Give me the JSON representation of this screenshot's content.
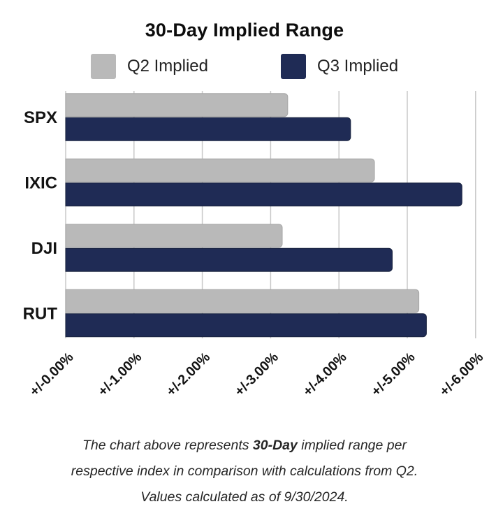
{
  "title": "30-Day Implied Range",
  "legend": {
    "items": [
      {
        "label": "Q2 Implied",
        "color": "#b9b9b9"
      },
      {
        "label": "Q3 Implied",
        "color": "#1f2b55"
      }
    ]
  },
  "chart_data": {
    "type": "bar",
    "orientation": "horizontal",
    "title": "30-Day Implied Range",
    "categories": [
      "SPX",
      "IXIC",
      "DJI",
      "RUT"
    ],
    "series": [
      {
        "name": "Q2 Implied",
        "color": "#b9b9b9",
        "edge_color": "#a6a6a6",
        "values_pct": [
          3.25,
          4.52,
          3.17,
          5.17
        ]
      },
      {
        "name": "Q3 Implied",
        "color": "#1f2b55",
        "edge_color": "#19233f",
        "values_pct": [
          4.17,
          5.8,
          4.78,
          5.28
        ]
      }
    ],
    "x_axis": {
      "tick_labels": [
        "+/-0.00%",
        "+/-1.00%",
        "+/-2.00%",
        "+/-3.00%",
        "+/-4.00%",
        "+/-5.00%",
        "+/-6.00%"
      ],
      "tick_values": [
        0,
        1,
        2,
        3,
        4,
        5,
        6
      ],
      "min": 0,
      "max": 6
    },
    "grid": "vertical",
    "gridline_color": "#c8c8c8",
    "legend_position": "top",
    "category_label_color": "#141414",
    "tick_label_color": "#121212"
  },
  "footer": {
    "lines": [
      {
        "segments": [
          {
            "text": "The chart above represents ",
            "bold": false
          },
          {
            "text": "30-Day",
            "bold": true
          },
          {
            "text": " implied range per",
            "bold": false
          }
        ]
      },
      {
        "segments": [
          {
            "text": "respective index in comparison with calculations from Q2.",
            "bold": false
          }
        ]
      },
      {
        "segments": [
          {
            "text": "Values calculated as of 9/30/2024.",
            "bold": false
          }
        ]
      }
    ]
  }
}
